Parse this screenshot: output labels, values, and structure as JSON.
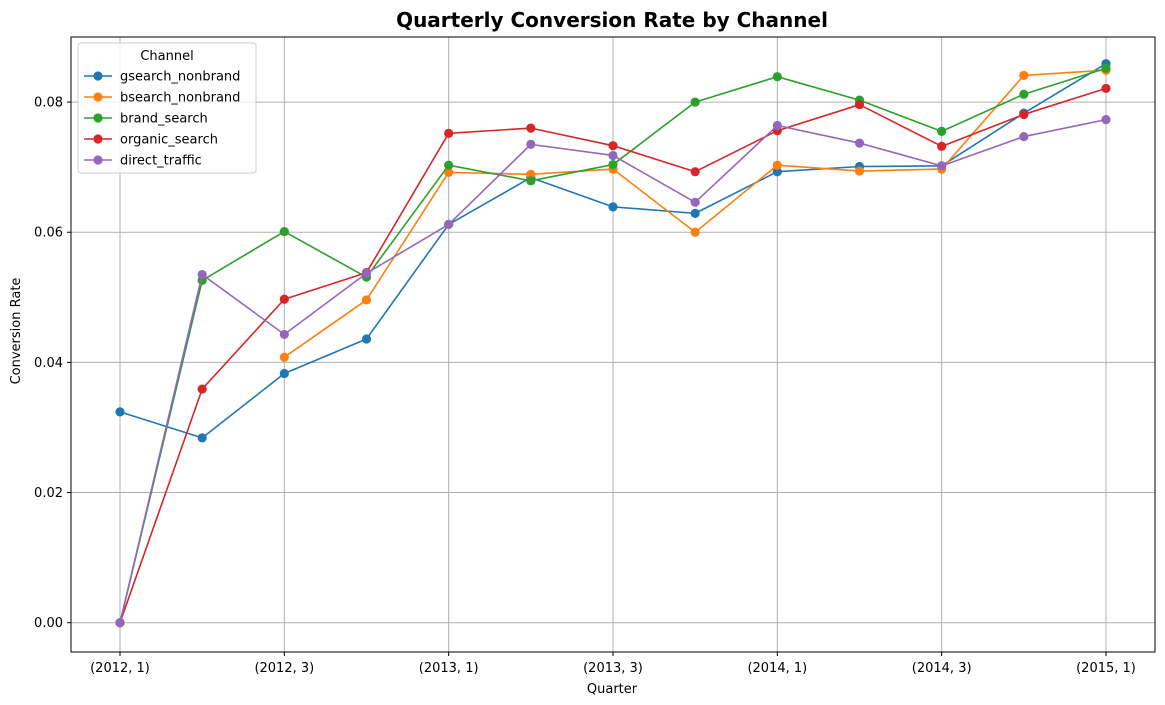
{
  "chart_data": {
    "type": "line",
    "title": "Quarterly Conversion Rate by Channel",
    "xlabel": "Quarter",
    "ylabel": "Conversion Rate",
    "categories": [
      "(2012, 1)",
      "(2012, 2)",
      "(2012, 3)",
      "(2012, 4)",
      "(2013, 1)",
      "(2013, 2)",
      "(2013, 3)",
      "(2013, 4)",
      "(2014, 1)",
      "(2014, 2)",
      "(2014, 3)",
      "(2014, 4)",
      "(2015, 1)"
    ],
    "tick_labels": [
      "(2012, 1)",
      "(2012, 3)",
      "(2013, 1)",
      "(2013, 3)",
      "(2014, 1)",
      "(2014, 3)",
      "(2015, 1)"
    ],
    "yticks": [
      "0.00",
      "0.02",
      "0.04",
      "0.06",
      "0.08"
    ],
    "ylim": [
      -0.0045,
      0.09
    ],
    "grid": true,
    "legend": {
      "title": "Channel",
      "placement": "top-left"
    },
    "series": [
      {
        "name": "gsearch_nonbrand",
        "color": "#1f77b4",
        "values": [
          0.0324,
          0.0284,
          0.0383,
          0.0436,
          0.0612,
          0.0684,
          0.0639,
          0.0629,
          0.0693,
          0.0701,
          0.0702,
          0.0783,
          0.0859
        ]
      },
      {
        "name": "bsearch_nonbrand",
        "color": "#ff7f0e",
        "values": [
          null,
          null,
          0.0408,
          0.0496,
          0.0692,
          0.0689,
          0.0697,
          0.06,
          0.0703,
          0.0694,
          0.0697,
          0.0841,
          0.0849
        ]
      },
      {
        "name": "brand_search",
        "color": "#2ca02c",
        "values": [
          0.0,
          0.0526,
          0.0601,
          0.0531,
          0.0703,
          0.0679,
          0.0704,
          0.08,
          0.0839,
          0.0803,
          0.0755,
          0.0812,
          0.0852
        ]
      },
      {
        "name": "organic_search",
        "color": "#d62728",
        "values": [
          0.0,
          0.0359,
          0.0497,
          0.0538,
          0.0752,
          0.076,
          0.0733,
          0.0693,
          0.0756,
          0.0796,
          0.0732,
          0.0781,
          0.0821
        ]
      },
      {
        "name": "direct_traffic",
        "color": "#9467bd",
        "values": [
          0.0,
          0.0535,
          0.0443,
          0.0537,
          0.0612,
          0.0735,
          0.0718,
          0.0646,
          0.0764,
          0.0737,
          0.0702,
          0.0747,
          0.0773
        ]
      }
    ]
  }
}
